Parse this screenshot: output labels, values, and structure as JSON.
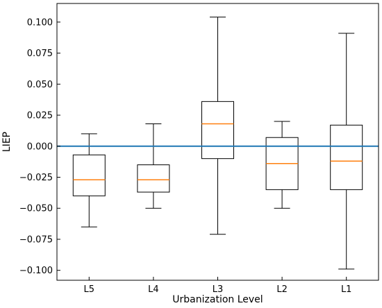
{
  "chart_data": {
    "type": "boxplot",
    "title": "",
    "xlabel": "Urbanization Level",
    "ylabel": "LIEP",
    "categories": [
      "L5",
      "L4",
      "L3",
      "L2",
      "L1"
    ],
    "boxes": [
      {
        "category": "L5",
        "whisker_low": -0.065,
        "q1": -0.04,
        "median": -0.027,
        "q3": -0.007,
        "whisker_high": 0.01
      },
      {
        "category": "L4",
        "whisker_low": -0.05,
        "q1": -0.037,
        "median": -0.027,
        "q3": -0.015,
        "whisker_high": 0.018
      },
      {
        "category": "L3",
        "whisker_low": -0.071,
        "q1": -0.01,
        "median": 0.018,
        "q3": 0.036,
        "whisker_high": 0.104
      },
      {
        "category": "L2",
        "whisker_low": -0.05,
        "q1": -0.035,
        "median": -0.014,
        "q3": 0.007,
        "whisker_high": 0.02
      },
      {
        "category": "L1",
        "whisker_low": -0.099,
        "q1": -0.035,
        "median": -0.012,
        "q3": 0.017,
        "whisker_high": 0.091
      }
    ],
    "ylim": [
      -0.108,
      0.115
    ],
    "yticks": [
      -0.1,
      -0.075,
      -0.05,
      -0.025,
      0.0,
      0.025,
      0.05,
      0.075,
      0.1
    ],
    "ytick_labels": [
      "−0.100",
      "−0.075",
      "−0.050",
      "−0.025",
      "0.000",
      "0.025",
      "0.050",
      "0.075",
      "0.100"
    ],
    "reference_line": {
      "y": 0.0,
      "color": "#1f77b4"
    },
    "colors": {
      "box": "#000000",
      "median": "#ff7f0e",
      "background": "#ffffff"
    },
    "grid": false,
    "legend": "none"
  }
}
